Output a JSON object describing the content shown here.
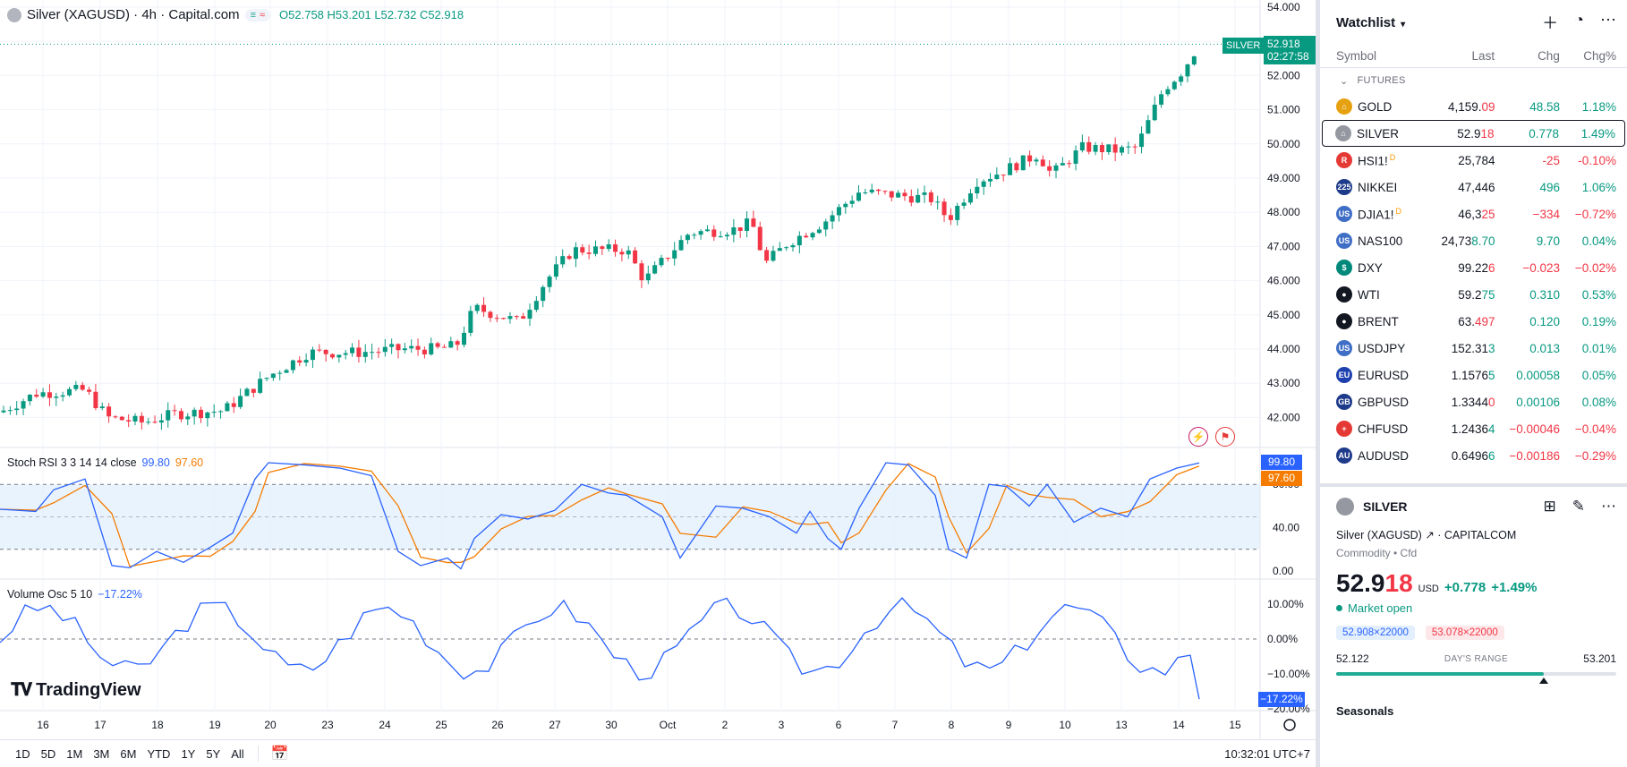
{
  "chart": {
    "title": "Silver (XAGUSD) · 4h · Capital.com",
    "pill_a": "≡",
    "pill_b": "≈",
    "ohlc": {
      "o": "O52.758",
      "h": "H53.201",
      "l": "L52.732",
      "c": "C52.918"
    },
    "last_price_tag": {
      "symbol": "SILVER",
      "price": "52.918",
      "countdown": "02:27:58"
    },
    "price_axis": [
      "54.000",
      "53.000",
      "52.000",
      "51.000",
      "50.000",
      "49.000",
      "48.000",
      "47.000",
      "46.000",
      "45.000",
      "44.000",
      "43.000",
      "42.000"
    ],
    "time_axis": [
      "16",
      "17",
      "18",
      "19",
      "20",
      "23",
      "24",
      "25",
      "26",
      "27",
      "30",
      "Oct",
      "2",
      "3",
      "6",
      "7",
      "8",
      "9",
      "10",
      "13",
      "14",
      "15"
    ],
    "brand": "TradingView"
  },
  "stoch": {
    "label": "Stoch RSI 3 3 14 14 close",
    "k_value": "99.80",
    "d_value": "97.60",
    "axis": [
      "80.00",
      "40.00",
      "0.00"
    ],
    "k_tag": "99.80",
    "d_tag": "97.60"
  },
  "volosc": {
    "label": "Volume Osc 5 10",
    "value": "−17.22%",
    "axis": [
      "10.00%",
      "0.00%",
      "−10.00%",
      "−20.00%"
    ],
    "tag": "−17.22%"
  },
  "bottom_bar": {
    "ranges": [
      "1D",
      "5D",
      "1M",
      "3M",
      "6M",
      "YTD",
      "1Y",
      "5Y",
      "All"
    ],
    "clock": "10:32:01 UTC+7"
  },
  "watchlist": {
    "title": "Watchlist",
    "columns": {
      "symbol": "Symbol",
      "last": "Last",
      "chg": "Chg",
      "chgp": "Chg%"
    },
    "section": "FUTURES",
    "rows": [
      {
        "symbol": "GOLD",
        "sup": "",
        "last_a": "4,159.",
        "last_b": "09",
        "last_b_color": "neg",
        "chg": "48.58",
        "chgp": "1.18%",
        "dir": "pos",
        "icon_color": "#e5a10f",
        "icon_text": "⌂"
      },
      {
        "symbol": "SILVER",
        "sup": "",
        "last_a": "52.9",
        "last_b": "18",
        "last_b_color": "neg",
        "chg": "0.778",
        "chgp": "1.49%",
        "dir": "pos",
        "icon_color": "#9598a1",
        "icon_text": "⌂"
      },
      {
        "symbol": "HSI1!",
        "sup": "D",
        "last_a": "25,784",
        "last_b": "",
        "last_b_color": "neg",
        "chg": "-25",
        "chgp": "-0.10%",
        "dir": "neg",
        "icon_color": "#e53935",
        "icon_text": "R"
      },
      {
        "symbol": "NIKKEI",
        "sup": "",
        "last_a": "47,446",
        "last_b": "",
        "last_b_color": "neg",
        "chg": "496",
        "chgp": "1.06%",
        "dir": "pos",
        "icon_color": "#1e3a8a",
        "icon_text": "225"
      },
      {
        "symbol": "DJIA1!",
        "sup": "D",
        "last_a": "46,3",
        "last_b": "25",
        "last_b_color": "neg",
        "chg": "−334",
        "chgp": "−0.72%",
        "dir": "neg",
        "icon_color": "#3f6ec6",
        "icon_text": "US"
      },
      {
        "symbol": "NAS100",
        "sup": "",
        "last_a": "24,73",
        "last_b": "8.70",
        "last_b_color": "pos",
        "chg": "9.70",
        "chgp": "0.04%",
        "dir": "pos",
        "icon_color": "#3f6ec6",
        "icon_text": "US"
      },
      {
        "symbol": "DXY",
        "sup": "",
        "last_a": "99.22",
        "last_b": "6",
        "last_b_color": "neg",
        "chg": "−0.023",
        "chgp": "−0.02%",
        "dir": "neg",
        "icon_color": "#00897b",
        "icon_text": "$"
      },
      {
        "symbol": "WTI",
        "sup": "",
        "last_a": "59.2",
        "last_b": "75",
        "last_b_color": "pos",
        "chg": "0.310",
        "chgp": "0.53%",
        "dir": "pos",
        "icon_color": "#131722",
        "icon_text": "●"
      },
      {
        "symbol": "BRENT",
        "sup": "",
        "last_a": "63.",
        "last_b": "497",
        "last_b_color": "neg",
        "chg": "0.120",
        "chgp": "0.19%",
        "dir": "pos",
        "icon_color": "#131722",
        "icon_text": "●"
      },
      {
        "symbol": "USDJPY",
        "sup": "",
        "last_a": "152.31",
        "last_b": "3",
        "last_b_color": "pos",
        "chg": "0.013",
        "chgp": "0.01%",
        "dir": "pos",
        "icon_color": "#3f6ec6",
        "icon_text": "US"
      },
      {
        "symbol": "EURUSD",
        "sup": "",
        "last_a": "1.1576",
        "last_b": "5",
        "last_b_color": "pos",
        "chg": "0.00058",
        "chgp": "0.05%",
        "dir": "pos",
        "icon_color": "#1e40af",
        "icon_text": "EU"
      },
      {
        "symbol": "GBPUSD",
        "sup": "",
        "last_a": "1.3344",
        "last_b": "0",
        "last_b_color": "neg",
        "chg": "0.00106",
        "chgp": "0.08%",
        "dir": "pos",
        "icon_color": "#1e3a8a",
        "icon_text": "GB"
      },
      {
        "symbol": "CHFUSD",
        "sup": "",
        "last_a": "1.2436",
        "last_b": "4",
        "last_b_color": "pos",
        "chg": "−0.00046",
        "chgp": "−0.04%",
        "dir": "neg",
        "icon_color": "#e53935",
        "icon_text": "+"
      },
      {
        "symbol": "AUDUSD",
        "sup": "",
        "last_a": "0.6496",
        "last_b": "6",
        "last_b_color": "pos",
        "chg": "−0.00186",
        "chgp": "−0.29%",
        "dir": "neg",
        "icon_color": "#1e3a8a",
        "icon_text": "AU"
      }
    ]
  },
  "detail": {
    "symbol": "SILVER",
    "name_line": "Silver (XAGUSD) ↗ · CAPITALCOM",
    "type_line": "Commodity • Cfd",
    "price_main": "52.9",
    "price_tail": "18",
    "currency": "USD",
    "change": "+0.778",
    "change_pct": "+1.49%",
    "status": "Market open",
    "bid": "52.908×22000",
    "ask": "53.078×22000",
    "range_low": "52.122",
    "range_label": "DAY'S RANGE",
    "range_high": "53.201",
    "range_position": 0.74,
    "seasonals": "Seasonals"
  },
  "colors": {
    "up": "#089981",
    "down": "#f23645",
    "k_line": "#2962ff",
    "d_line": "#f57c00"
  }
}
